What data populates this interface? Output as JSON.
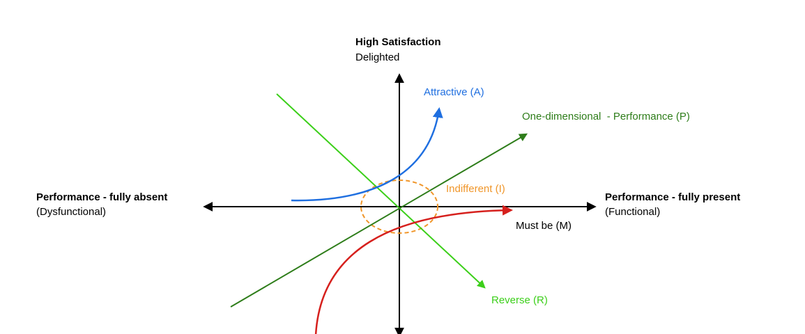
{
  "axes": {
    "top": {
      "title": "High Satisfaction",
      "subtitle": "Delighted"
    },
    "left": {
      "title": "Performance - fully absent",
      "subtitle": "(Dysfunctional)"
    },
    "right": {
      "title": "Performance - fully present",
      "subtitle": "(Functional)"
    }
  },
  "curves": {
    "attractive": "Attractive (A)",
    "performance": "One-dimensional  - Performance (P)",
    "indifferent": "Indifferent (I)",
    "must_be": "Must be (M)",
    "reverse": "Reverse (R)"
  }
}
